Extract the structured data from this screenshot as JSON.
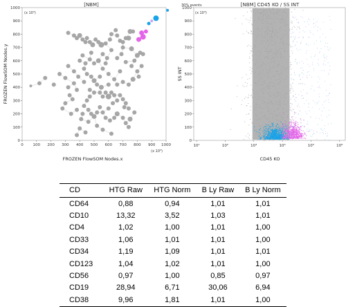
{
  "plots": {
    "left": {
      "title": "[NBM]",
      "xlabel": "FROZEN FlowSOM Nodes.x",
      "ylabel": "FROZEN FlowSOM Nodes.y",
      "x_unit": "(x 10³)",
      "y_unit": "(x 10³)"
    },
    "right": {
      "title": "[NBM] CD45 KO / SS INT",
      "events_note": "30% events",
      "xlabel": "CD45 KO",
      "ylabel": "SS INT",
      "y_unit": "(x 10³)"
    }
  },
  "colors": {
    "node_gray": "#a6a6a6",
    "magenta": "#e466e8",
    "cyan": "#1aa3e8",
    "pale_purple": "#c9a7f0"
  },
  "chart_data": [
    {
      "type": "scatter",
      "title": "[NBM]",
      "xlabel": "FROZEN FlowSOM Nodes.x",
      "ylabel": "FROZEN FlowSOM Nodes.y",
      "xlim": [
        0,
        1000
      ],
      "ylim": [
        0,
        1000
      ],
      "x_ticks": [
        "0",
        "100",
        "200",
        "300",
        "400",
        "500",
        "600",
        "700",
        "800",
        "900",
        "1000"
      ],
      "y_ticks": [
        "0",
        "100",
        "200",
        "300",
        "400",
        "500",
        "600",
        "700",
        "800",
        "900",
        "1000"
      ],
      "series": [
        {
          "color": "#a6a6a6",
          "points": [
            [
              320,
              810,
              3
            ],
            [
              360,
              790,
              3
            ],
            [
              380,
              770,
              3
            ],
            [
              400,
              790,
              3.5
            ],
            [
              420,
              760,
              3
            ],
            [
              440,
              740,
              3
            ],
            [
              450,
              770,
              3
            ],
            [
              470,
              740,
              3
            ],
            [
              490,
              720,
              3.5
            ],
            [
              510,
              760,
              3
            ],
            [
              530,
              740,
              3
            ],
            [
              550,
              720,
              4
            ],
            [
              580,
              730,
              3
            ],
            [
              610,
              760,
              3
            ],
            [
              620,
              800,
              3
            ],
            [
              650,
              830,
              3
            ],
            [
              660,
              790,
              3
            ],
            [
              680,
              750,
              3
            ],
            [
              700,
              740,
              3
            ],
            [
              720,
              770,
              3
            ],
            [
              750,
              820,
              3.5
            ],
            [
              770,
              820,
              3
            ],
            [
              740,
              770,
              3.5
            ],
            [
              700,
              700,
              3
            ],
            [
              760,
              690,
              3.5
            ],
            [
              800,
              640,
              3.5
            ],
            [
              820,
              660,
              3
            ],
            [
              840,
              650,
              3
            ],
            [
              780,
              600,
              3
            ],
            [
              690,
              650,
              3
            ],
            [
              660,
              620,
              3
            ],
            [
              620,
              680,
              3
            ],
            [
              590,
              620,
              3
            ],
            [
              560,
              650,
              3
            ],
            [
              530,
              600,
              3.5
            ],
            [
              500,
              580,
              3
            ],
            [
              470,
              610,
              3
            ],
            [
              440,
              580,
              3
            ],
            [
              420,
              640,
              3
            ],
            [
              400,
              600,
              3
            ],
            [
              430,
              540,
              3
            ],
            [
              450,
              500,
              3
            ],
            [
              480,
              480,
              3
            ],
            [
              500,
              450,
              3.5
            ],
            [
              520,
              420,
              3
            ],
            [
              550,
              400,
              3.5
            ],
            [
              540,
              360,
              3
            ],
            [
              560,
              330,
              3
            ],
            [
              580,
              360,
              3
            ],
            [
              600,
              330,
              4
            ],
            [
              620,
              360,
              3
            ],
            [
              640,
              340,
              3
            ],
            [
              660,
              300,
              3
            ],
            [
              680,
              340,
              3
            ],
            [
              700,
              310,
              3
            ],
            [
              720,
              280,
              3
            ],
            [
              500,
              360,
              3
            ],
            [
              470,
              330,
              3
            ],
            [
              450,
              300,
              3
            ],
            [
              430,
              260,
              3
            ],
            [
              460,
              230,
              3
            ],
            [
              480,
              200,
              3
            ],
            [
              500,
              180,
              3.5
            ],
            [
              520,
              210,
              3
            ],
            [
              540,
              250,
              3
            ],
            [
              560,
              210,
              3
            ],
            [
              580,
              170,
              3
            ],
            [
              610,
              150,
              3
            ],
            [
              640,
              170,
              3
            ],
            [
              660,
              200,
              3.5
            ],
            [
              700,
              170,
              3
            ],
            [
              720,
              130,
              3
            ],
            [
              750,
              160,
              3.5
            ],
            [
              780,
              210,
              3
            ],
            [
              740,
              240,
              3
            ],
            [
              710,
              250,
              3
            ],
            [
              740,
              100,
              3
            ],
            [
              520,
              110,
              3
            ],
            [
              560,
              80,
              3
            ],
            [
              440,
              60,
              3
            ],
            [
              400,
              90,
              3
            ],
            [
              380,
              40,
              3
            ],
            [
              620,
              50,
              3
            ],
            [
              460,
              140,
              3
            ],
            [
              410,
              160,
              3
            ],
            [
              350,
              310,
              3
            ],
            [
              320,
              400,
              3
            ],
            [
              360,
              430,
              3
            ],
            [
              300,
              470,
              3
            ],
            [
              260,
              500,
              3
            ],
            [
              220,
              420,
              3
            ],
            [
              160,
              470,
              3
            ],
            [
              120,
              430,
              3
            ],
            [
              60,
              410,
              2
            ],
            [
              320,
              560,
              3
            ],
            [
              360,
              520,
              3
            ],
            [
              390,
              480,
              3
            ],
            [
              430,
              440,
              3
            ],
            [
              560,
              540,
              3
            ],
            [
              600,
              500,
              3
            ],
            [
              640,
              460,
              3
            ],
            [
              660,
              420,
              3
            ],
            [
              700,
              440,
              3
            ],
            [
              740,
              420,
              3
            ],
            [
              770,
              460,
              3.5
            ],
            [
              800,
              520,
              3
            ],
            [
              830,
              560,
              3
            ],
            [
              810,
              480,
              3
            ],
            [
              680,
              520,
              3
            ],
            [
              540,
              480,
              3
            ],
            [
              470,
              380,
              3
            ],
            [
              380,
              380,
              3
            ],
            [
              330,
              340,
              3
            ],
            [
              300,
              280,
              3
            ],
            [
              280,
              240,
              3
            ],
            [
              340,
              200,
              3
            ],
            [
              380,
              230,
              3
            ],
            [
              420,
              200,
              3
            ],
            [
              600,
              240,
              3
            ],
            [
              630,
              280,
              3
            ],
            [
              600,
              420,
              3
            ],
            [
              580,
              580,
              3
            ],
            [
              720,
              590,
              3
            ],
            [
              760,
              560,
              3
            ],
            [
              480,
              660,
              3
            ]
          ]
        },
        {
          "color": "#e466e8",
          "points": [
            [
              810,
              760,
              3.5
            ],
            [
              840,
              780,
              4
            ],
            [
              830,
              810,
              3.5
            ],
            [
              860,
              820,
              3
            ]
          ]
        },
        {
          "color": "#1aa3e8",
          "points": [
            [
              930,
              920,
              4
            ],
            [
              1010,
              980,
              2
            ],
            [
              880,
              880,
              2.5
            ]
          ]
        },
        {
          "color": "#c9a7f0",
          "points": [
            [
              900,
              900,
              2
            ]
          ]
        }
      ]
    },
    {
      "type": "scatter",
      "title": "[NBM] CD45 KO / SS INT",
      "xlabel": "CD45 KO",
      "ylabel": "SS INT",
      "x_ticks": [
        "10¹",
        "10²",
        "10³",
        "10⁴",
        "10⁵",
        "10⁶"
      ],
      "x_tick_log": [
        1,
        2,
        3,
        4,
        5,
        6
      ],
      "xlim_log": [
        0.9,
        6.2
      ],
      "y_ticks": [
        "0",
        "100",
        "200",
        "300",
        "400",
        "500",
        "600",
        "700",
        "800",
        "900",
        "1000"
      ],
      "ylim": [
        0,
        1000
      ],
      "series": [
        {
          "name_hidden": true,
          "color": "#a6a6a6",
          "region": "dense column",
          "x_log": [
            2.8,
            4.4
          ],
          "y": [
            0,
            1000
          ]
        },
        {
          "name_hidden": true,
          "color": "#1aa3e8",
          "region": "cluster",
          "x_log": [
            3.4,
            4.2
          ],
          "y": [
            0,
            120
          ]
        },
        {
          "name_hidden": true,
          "color": "#e466e8",
          "region": "cluster",
          "x_log": [
            4.0,
            4.6
          ],
          "y": [
            0,
            150
          ]
        }
      ]
    }
  ],
  "table": {
    "headers": [
      "CD",
      "HTG Raw",
      "HTG Norm",
      "B Ly Raw",
      "B Ly Norm"
    ],
    "rows": [
      [
        "CD64",
        "0,88",
        "0,94",
        "1,01",
        "1,01"
      ],
      [
        "CD10",
        "13,32",
        "3,52",
        "1,03",
        "1,01"
      ],
      [
        "CD4",
        "1,02",
        "1,00",
        "1,01",
        "1,00"
      ],
      [
        "CD33",
        "1,06",
        "1,01",
        "1,01",
        "1,00"
      ],
      [
        "CD34",
        "1,19",
        "1,09",
        "1,01",
        "1,01"
      ],
      [
        "CD123",
        "1,04",
        "1,02",
        "1,01",
        "1,00"
      ],
      [
        "CD56",
        "0,97",
        "1,00",
        "0,85",
        "0,97"
      ],
      [
        "CD19",
        "28,94",
        "6,71",
        "30,06",
        "6,94"
      ],
      [
        "CD38",
        "9,96",
        "1,81",
        "1,01",
        "1,00"
      ]
    ]
  }
}
